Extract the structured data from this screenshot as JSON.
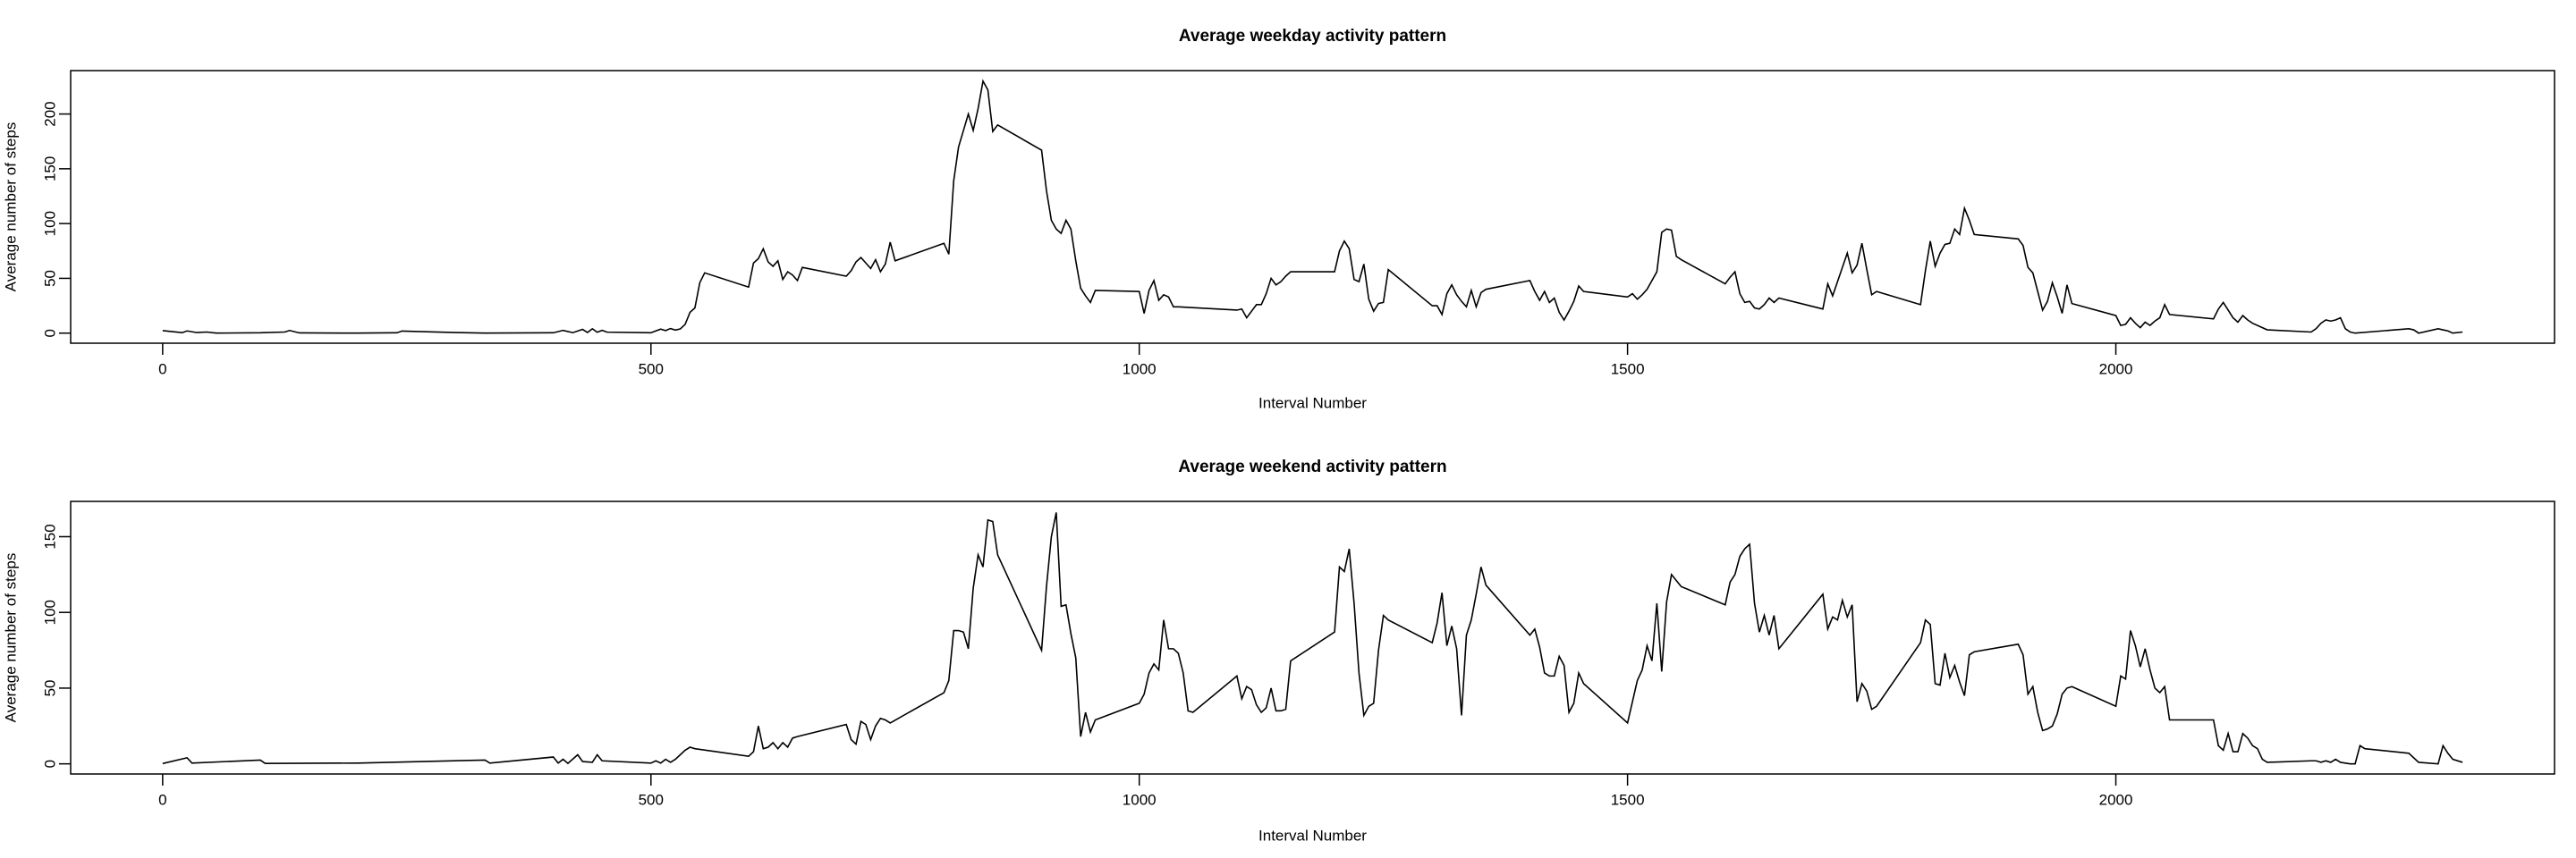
{
  "chart_data": [
    {
      "type": "line",
      "title": "Average weekday activity pattern",
      "xlabel": "Interval Number",
      "ylabel": "Average number of steps",
      "color": "#000000",
      "x": [
        0,
        20,
        25,
        35,
        45,
        55,
        100,
        125,
        130,
        140,
        200,
        240,
        245,
        300,
        330,
        400,
        410,
        420,
        430,
        435,
        440,
        445,
        450,
        455,
        500,
        505,
        510,
        515,
        520,
        525,
        530,
        535,
        540,
        545,
        550,
        555,
        600,
        605,
        610,
        615,
        620,
        625,
        630,
        635,
        640,
        645,
        650,
        655,
        700,
        705,
        710,
        715,
        720,
        725,
        730,
        735,
        740,
        745,
        750,
        800,
        805,
        810,
        815,
        820,
        825,
        830,
        835,
        840,
        845,
        850,
        855,
        900,
        905,
        910,
        915,
        920,
        925,
        930,
        935,
        940,
        945,
        950,
        955,
        1000,
        1005,
        1010,
        1015,
        1020,
        1025,
        1030,
        1035,
        1040,
        1100,
        1105,
        1110,
        1115,
        1120,
        1125,
        1130,
        1135,
        1140,
        1145,
        1150,
        1155,
        1200,
        1205,
        1210,
        1215,
        1220,
        1225,
        1230,
        1235,
        1240,
        1245,
        1250,
        1255,
        1300,
        1305,
        1310,
        1315,
        1320,
        1325,
        1330,
        1335,
        1340,
        1345,
        1350,
        1355,
        1400,
        1405,
        1410,
        1415,
        1420,
        1425,
        1430,
        1435,
        1440,
        1445,
        1450,
        1455,
        1500,
        1505,
        1510,
        1515,
        1520,
        1525,
        1530,
        1535,
        1540,
        1545,
        1550,
        1555,
        1600,
        1605,
        1610,
        1615,
        1620,
        1625,
        1630,
        1635,
        1640,
        1645,
        1650,
        1655,
        1700,
        1705,
        1710,
        1715,
        1720,
        1725,
        1730,
        1735,
        1740,
        1745,
        1750,
        1755,
        1800,
        1805,
        1810,
        1815,
        1820,
        1825,
        1830,
        1835,
        1840,
        1845,
        1850,
        1855,
        1900,
        1905,
        1910,
        1915,
        1920,
        1925,
        1930,
        1935,
        1940,
        1945,
        1950,
        1955,
        2000,
        2005,
        2010,
        2015,
        2020,
        2025,
        2030,
        2035,
        2040,
        2045,
        2050,
        2055,
        2100,
        2105,
        2110,
        2115,
        2120,
        2125,
        2130,
        2135,
        2140,
        2155,
        2200,
        2205,
        2210,
        2215,
        2220,
        2225,
        2230,
        2235,
        2240,
        2245,
        2300,
        2305,
        2310,
        2330,
        2335,
        2340,
        2345,
        2355
      ],
      "values": [
        2.3,
        0.4,
        2,
        0.5,
        1,
        0,
        0.3,
        1,
        2.4,
        0.2,
        0,
        0.3,
        1.9,
        0.5,
        0,
        0.3,
        2.5,
        0.4,
        3.4,
        0.6,
        4,
        0.8,
        2.5,
        0.9,
        0.3,
        2,
        3.7,
        2.3,
        4.2,
        2.8,
        3.8,
        8,
        19,
        23,
        46,
        55,
        42,
        64,
        68,
        77,
        65,
        61,
        66,
        49,
        56,
        53,
        48,
        60,
        52,
        57,
        65,
        69,
        64,
        59,
        67,
        56,
        63,
        83,
        66,
        82,
        72,
        139,
        170,
        185,
        200,
        185,
        205,
        230,
        222,
        184,
        190,
        167,
        130,
        103,
        95,
        91,
        103,
        95,
        66,
        41,
        34,
        28,
        39,
        38,
        18,
        39,
        48,
        30,
        35,
        33,
        24,
        24,
        21,
        22,
        14,
        20,
        26,
        26,
        36,
        50,
        44,
        47,
        52,
        56,
        56,
        75,
        84,
        77,
        49,
        47,
        63,
        31,
        20,
        27,
        28,
        58,
        25,
        25,
        17,
        36,
        44,
        35,
        29,
        24,
        39,
        24,
        37,
        40,
        48,
        38,
        30,
        38,
        28,
        32,
        19,
        12,
        20,
        29,
        43,
        38,
        33,
        36,
        31,
        35,
        40,
        48,
        56,
        92,
        95,
        94,
        70,
        67,
        45,
        51,
        56,
        36,
        28,
        29,
        23,
        22,
        26,
        32,
        28,
        32,
        22,
        45,
        34,
        47,
        60,
        73,
        55,
        62,
        82,
        58,
        35,
        38,
        26,
        57,
        84,
        61,
        73,
        81,
        82,
        95,
        90,
        114,
        103,
        90,
        86,
        80,
        60,
        55,
        38,
        21,
        29,
        46,
        33,
        18,
        44,
        27,
        16,
        7,
        8,
        14,
        9,
        5,
        10,
        7,
        11,
        14,
        26,
        17,
        13,
        22,
        28,
        21,
        14,
        10,
        16,
        12,
        9,
        3,
        1,
        4,
        9,
        12,
        11,
        12,
        14,
        4,
        1,
        0,
        4,
        3,
        0,
        4,
        3,
        2,
        0,
        1
      ],
      "xlim": [
        -94.2,
        2449.2
      ],
      "xticks": [
        0,
        500,
        1000,
        1500,
        2000
      ],
      "ylim": [
        -9.2,
        239.6
      ],
      "yticks": [
        0,
        50,
        100,
        150,
        200
      ]
    },
    {
      "type": "line",
      "title": "Average weekend activity pattern",
      "xlabel": "Interval Number",
      "ylabel": "Average number of steps",
      "color": "#000000",
      "x": [
        0,
        25,
        30,
        100,
        105,
        200,
        330,
        335,
        400,
        405,
        410,
        415,
        425,
        430,
        440,
        445,
        450,
        500,
        505,
        510,
        515,
        520,
        525,
        530,
        535,
        540,
        545,
        600,
        605,
        610,
        615,
        620,
        625,
        630,
        635,
        640,
        645,
        650,
        700,
        705,
        710,
        715,
        720,
        725,
        730,
        735,
        740,
        745,
        800,
        805,
        810,
        815,
        820,
        825,
        830,
        835,
        840,
        845,
        850,
        855,
        900,
        905,
        910,
        915,
        920,
        925,
        930,
        935,
        940,
        945,
        950,
        955,
        1000,
        1005,
        1010,
        1015,
        1020,
        1025,
        1030,
        1035,
        1040,
        1045,
        1050,
        1055,
        1100,
        1105,
        1110,
        1115,
        1120,
        1125,
        1130,
        1135,
        1140,
        1145,
        1150,
        1155,
        1200,
        1205,
        1210,
        1215,
        1220,
        1225,
        1230,
        1235,
        1240,
        1245,
        1250,
        1255,
        1300,
        1305,
        1310,
        1315,
        1320,
        1325,
        1330,
        1335,
        1340,
        1345,
        1350,
        1355,
        1400,
        1405,
        1410,
        1415,
        1420,
        1425,
        1430,
        1435,
        1440,
        1445,
        1450,
        1455,
        1500,
        1505,
        1510,
        1515,
        1520,
        1525,
        1530,
        1535,
        1540,
        1545,
        1550,
        1555,
        1600,
        1605,
        1610,
        1615,
        1620,
        1625,
        1630,
        1635,
        1640,
        1645,
        1650,
        1655,
        1700,
        1705,
        1710,
        1715,
        1720,
        1725,
        1730,
        1735,
        1740,
        1745,
        1750,
        1755,
        1800,
        1805,
        1810,
        1815,
        1820,
        1825,
        1830,
        1835,
        1840,
        1845,
        1850,
        1855,
        1900,
        1905,
        1910,
        1915,
        1920,
        1925,
        1930,
        1935,
        1940,
        1945,
        1950,
        1955,
        2000,
        2005,
        2010,
        2015,
        2020,
        2025,
        2030,
        2035,
        2040,
        2045,
        2050,
        2055,
        2100,
        2105,
        2110,
        2115,
        2120,
        2125,
        2130,
        2135,
        2140,
        2145,
        2150,
        2155,
        2200,
        2205,
        2210,
        2215,
        2220,
        2225,
        2230,
        2240,
        2245,
        2250,
        2255,
        2300,
        2305,
        2310,
        2330,
        2335,
        2340,
        2345,
        2355
      ],
      "values": [
        0.2,
        4,
        0.5,
        2.5,
        0.3,
        0.5,
        2.5,
        0.5,
        4.5,
        0.5,
        3,
        0.3,
        6,
        1.5,
        1,
        6,
        2,
        0.5,
        2,
        0.5,
        3,
        1,
        3,
        6,
        9,
        11,
        10,
        5,
        8,
        25,
        10,
        11,
        14,
        10,
        14,
        11,
        17,
        18,
        26,
        16,
        13,
        28,
        26,
        16,
        25,
        30,
        29,
        27,
        47,
        55,
        88,
        88,
        87,
        76,
        116,
        138,
        130,
        161,
        160,
        138,
        75,
        117,
        150,
        166,
        104,
        105,
        86,
        70,
        18,
        34,
        21,
        29,
        40,
        46,
        60,
        66,
        62,
        95,
        76,
        76,
        73,
        60,
        35,
        34,
        58,
        43,
        51,
        49,
        39,
        34,
        37,
        50,
        35,
        35,
        36,
        68,
        87,
        130,
        127,
        142,
        106,
        60,
        32,
        38,
        40,
        75,
        98,
        95,
        80,
        93,
        113,
        78,
        91,
        76,
        32,
        85,
        95,
        112,
        130,
        118,
        85,
        89,
        77,
        60,
        58,
        58,
        71,
        65,
        34,
        40,
        60,
        53,
        27,
        41,
        55,
        62,
        78,
        68,
        106,
        61,
        107,
        125,
        121,
        117,
        105,
        120,
        125,
        137,
        142,
        145,
        106,
        87,
        98,
        85,
        98,
        76,
        112,
        89,
        97,
        95,
        108,
        97,
        105,
        41,
        53,
        48,
        36,
        38,
        80,
        95,
        92,
        53,
        52,
        73,
        57,
        65,
        54,
        45,
        72,
        74,
        79,
        72,
        46,
        51,
        34,
        22,
        23,
        25,
        33,
        46,
        50,
        51,
        38,
        58,
        56,
        88,
        78,
        64,
        76,
        62,
        50,
        47,
        51,
        29,
        29,
        12,
        9,
        20,
        8,
        8,
        20,
        17,
        12,
        10,
        3,
        1,
        2,
        2,
        1,
        2,
        1,
        3,
        1,
        0,
        0,
        12,
        10,
        7,
        4,
        1,
        0,
        12,
        7,
        3,
        1
      ],
      "xlim": [
        -94.2,
        2449.2
      ],
      "xticks": [
        0,
        500,
        1000,
        1500,
        2000
      ],
      "ylim": [
        -6.7,
        173.3
      ],
      "yticks": [
        0,
        50,
        100,
        150
      ]
    }
  ]
}
